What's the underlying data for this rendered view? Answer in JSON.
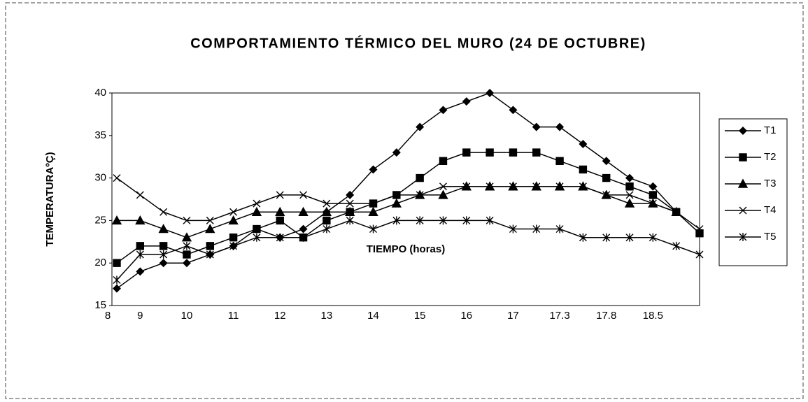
{
  "chart_data": {
    "type": "line",
    "title": "COMPORTAMIENTO TÉRMICO DEL MURO (24 DE OCTUBRE)",
    "x_label": "TIEMPO (horas)",
    "y_label": "TEMPERATURAºÇ)",
    "categories": [
      "8",
      "9",
      null,
      "10",
      null,
      "11",
      null,
      "12",
      null,
      "13",
      null,
      "14",
      null,
      "15",
      null,
      "16",
      null,
      "17",
      null,
      "17.3",
      null,
      "17.8",
      null,
      "18.5",
      null,
      null
    ],
    "ylim": [
      15,
      40
    ],
    "yticks": [
      15,
      20,
      25,
      30,
      35,
      40
    ],
    "grid": false,
    "legend": "right",
    "series": [
      {
        "name": "T1",
        "color": "#000000",
        "marker": "diamond",
        "values": [
          17,
          19,
          20,
          20,
          21,
          22,
          24,
          23,
          24,
          26,
          28,
          31,
          33,
          36,
          38,
          39,
          40,
          38,
          36,
          36,
          34,
          32,
          30,
          29,
          26,
          null
        ]
      },
      {
        "name": "T2",
        "color": "#000000",
        "marker": "square",
        "values": [
          20,
          22,
          22,
          21,
          22,
          23,
          24,
          25,
          23,
          25,
          26,
          27,
          28,
          30,
          32,
          33,
          33,
          33,
          33,
          32,
          31,
          30,
          29,
          28,
          26,
          23.5
        ]
      },
      {
        "name": "T3",
        "color": "#000000",
        "marker": "triangle",
        "values": [
          25,
          25,
          24,
          23,
          24,
          25,
          26,
          26,
          26,
          26,
          26,
          26,
          27,
          28,
          28,
          29,
          29,
          29,
          29,
          29,
          29,
          28,
          27,
          27,
          26,
          null
        ]
      },
      {
        "name": "T4",
        "color": "#000000",
        "marker": "x",
        "values": [
          30,
          28,
          26,
          25,
          25,
          26,
          27,
          28,
          28,
          27,
          27,
          27,
          28,
          28,
          29,
          29,
          29,
          29,
          29,
          29,
          29,
          28,
          28,
          27,
          26,
          24
        ]
      },
      {
        "name": "T5",
        "color": "#000000",
        "marker": "star",
        "values": [
          18,
          21,
          21,
          22,
          21,
          22,
          23,
          23,
          23,
          24,
          25,
          24,
          25,
          25,
          25,
          25,
          25,
          24,
          24,
          24,
          23,
          23,
          23,
          23,
          22,
          21
        ]
      }
    ]
  }
}
